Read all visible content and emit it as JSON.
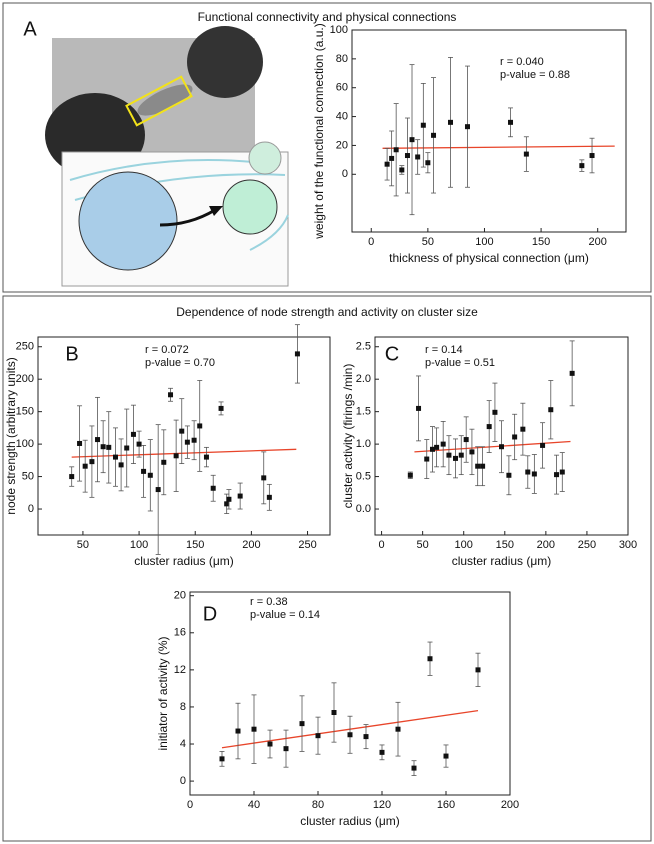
{
  "panel_titles": [
    "Functional connectivity and physical connections",
    "Dependence of node strength and activity on cluster size"
  ],
  "chart_data": [
    {
      "type": "scatter",
      "label": "A",
      "xlabel": "thickness of physical connection (μm)",
      "ylabel": "weight of the functional connection (a.u.)",
      "annotations": [
        "r = 0.040",
        "p-value = 0.88"
      ],
      "x": [
        14,
        18,
        22,
        27,
        32,
        36,
        41,
        46,
        50,
        55,
        70,
        85,
        123,
        137,
        186,
        195
      ],
      "values": [
        7,
        11,
        17,
        3,
        13,
        24,
        12,
        34,
        8,
        27,
        36,
        33,
        36,
        14,
        6,
        13
      ],
      "errors": [
        11,
        19,
        32,
        3,
        26,
        52,
        12,
        29,
        7,
        40,
        45,
        42,
        10,
        12,
        4,
        12
      ],
      "color": "#111111",
      "fit": {
        "color": "#e8452a",
        "x": [
          10,
          215
        ],
        "y": [
          18,
          19.5
        ]
      },
      "xlim": [
        -17,
        225
      ],
      "ylim": [
        -40,
        100
      ],
      "xticks": [
        0,
        50,
        100,
        150,
        200
      ],
      "yticks": [
        0,
        20,
        40,
        60,
        80,
        100
      ]
    },
    {
      "type": "scatter",
      "label": "B",
      "xlabel": "cluster radius (μm)",
      "ylabel": "node strength (arbitrary units)",
      "annotations": [
        "r = 0.072",
        "p-value = 0.70"
      ],
      "x": [
        40,
        47,
        52,
        58,
        63,
        68,
        73,
        79,
        84,
        89,
        95,
        100,
        104,
        110,
        117,
        122,
        128,
        133,
        138,
        143,
        149,
        154,
        160,
        166,
        173,
        178,
        180,
        190,
        211,
        216,
        241
      ],
      "values": [
        50,
        101,
        66,
        73,
        107,
        96,
        95,
        80,
        68,
        94,
        115,
        100,
        58,
        52,
        30,
        72,
        176,
        82,
        120,
        103,
        106,
        128,
        80,
        32,
        155,
        8,
        15,
        20,
        48,
        18,
        239
      ],
      "errors": [
        15,
        58,
        40,
        55,
        65,
        40,
        55,
        45,
        40,
        60,
        45,
        20,
        40,
        55,
        100,
        50,
        10,
        55,
        50,
        25,
        30,
        70,
        15,
        20,
        10,
        15,
        15,
        20,
        40,
        20,
        45
      ],
      "color": "#111111",
      "fit": {
        "color": "#e8452a",
        "x": [
          40,
          240
        ],
        "y": [
          80,
          92
        ]
      },
      "xlim": [
        10,
        270
      ],
      "ylim": [
        -40,
        265
      ],
      "xticks": [
        50,
        100,
        150,
        200,
        250
      ],
      "yticks": [
        0,
        50,
        100,
        150,
        200,
        250
      ]
    },
    {
      "type": "scatter",
      "label": "C",
      "xlabel": "cluster radius (μm)",
      "ylabel": "cluster activity (firings /min)",
      "annotations": [
        "r = 0.14",
        "p-value = 0.51"
      ],
      "x": [
        35,
        45,
        55,
        62,
        67,
        75,
        82,
        90,
        97,
        103,
        110,
        117,
        123,
        131,
        138,
        146,
        155,
        162,
        172,
        178,
        186,
        196,
        206,
        213,
        220,
        232
      ],
      "values": [
        0.52,
        1.55,
        0.77,
        0.92,
        0.95,
        1.0,
        0.83,
        0.78,
        0.83,
        1.07,
        0.88,
        0.66,
        0.66,
        1.27,
        1.49,
        0.96,
        0.52,
        1.11,
        1.23,
        0.57,
        0.54,
        0.98,
        1.53,
        0.53,
        0.57,
        2.09
      ],
      "errors": [
        0.05,
        0.5,
        0.3,
        0.35,
        0.3,
        0.35,
        0.3,
        0.3,
        0.3,
        0.35,
        0.35,
        0.3,
        0.3,
        0.4,
        0.45,
        0.4,
        0.3,
        0.35,
        0.4,
        0.25,
        0.3,
        0.35,
        0.45,
        0.3,
        0.3,
        0.5
      ],
      "color": "#111111",
      "fit": {
        "color": "#e8452a",
        "x": [
          40,
          230
        ],
        "y": [
          0.88,
          1.04
        ]
      },
      "xlim": [
        -8,
        300
      ],
      "ylim": [
        -0.4,
        2.65
      ],
      "xticks": [
        0,
        50,
        100,
        150,
        200,
        250,
        300
      ],
      "yticks": [
        {
          "value": 0,
          "label": "0.0"
        },
        0.5,
        {
          "value": 1,
          "label": "1.0"
        },
        1.5,
        {
          "value": 2,
          "label": "2.0"
        },
        2.5
      ]
    },
    {
      "type": "scatter",
      "label": "D",
      "xlabel": "cluster radius  (μm)",
      "ylabel": "initiator of activity    (%)",
      "annotations": [
        "r = 0.38",
        "p-value = 0.14"
      ],
      "x": [
        20,
        30,
        40,
        50,
        60,
        70,
        80,
        90,
        100,
        110,
        120,
        130,
        140,
        150,
        160,
        180
      ],
      "values": [
        2.4,
        5.4,
        5.6,
        4,
        3.5,
        6.2,
        4.9,
        7.4,
        5,
        4.8,
        3.1,
        5.6,
        1.4,
        13.2,
        2.7,
        12
      ],
      "errors": [
        0.8,
        3,
        3.7,
        1.5,
        2,
        3,
        2,
        3.2,
        2,
        1.3,
        0.8,
        2.9,
        0.8,
        1.8,
        1.2,
        1.8
      ],
      "color": "#111111",
      "fit": {
        "color": "#e8452a",
        "x": [
          20,
          180
        ],
        "y": [
          3.6,
          7.6
        ]
      },
      "xlim": [
        0,
        200
      ],
      "ylim": [
        -1.5,
        20.4
      ],
      "xticks": [
        0,
        40,
        80,
        120,
        160,
        200
      ],
      "yticks": [
        0,
        4,
        8,
        12,
        16,
        20
      ]
    }
  ]
}
